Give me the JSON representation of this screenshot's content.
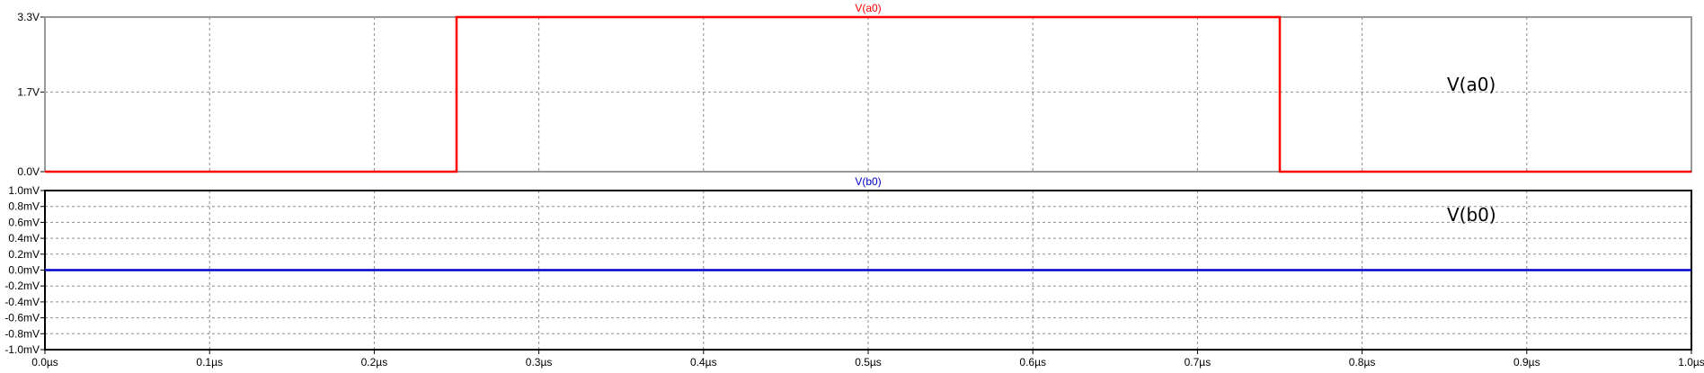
{
  "chart_data": [
    {
      "type": "line",
      "title": "V(a0)",
      "annotation": "V(a0)",
      "color": "#ff0000",
      "series": [
        {
          "name": "V(a0)",
          "x": [
            0.0,
            0.25,
            0.25,
            0.75,
            0.75,
            1.0
          ],
          "y": [
            0.0,
            0.0,
            3.3,
            3.3,
            0.0,
            0.0
          ]
        }
      ],
      "xlim": [
        0.0,
        1.0
      ],
      "ylim": [
        0.0,
        3.3
      ],
      "yticks": [
        "3.3V",
        "1.7V",
        "0.0V"
      ],
      "ytick_values": [
        3.3,
        1.7,
        0.0
      ],
      "grid": true
    },
    {
      "type": "line",
      "title": "V(b0)",
      "annotation": "V(b0)",
      "color": "#0000cc",
      "series": [
        {
          "name": "V(b0)",
          "x": [
            0.0,
            1.0
          ],
          "y": [
            0.0,
            0.0
          ]
        }
      ],
      "xlim": [
        0.0,
        1.0
      ],
      "ylim": [
        -1.0,
        1.0
      ],
      "yticks": [
        "1.0mV",
        "0.8mV",
        "0.6mV",
        "0.4mV",
        "0.2mV",
        "0.0mV",
        "-0.2mV",
        "-0.4mV",
        "-0.6mV",
        "-0.8mV",
        "-1.0mV"
      ],
      "ytick_values": [
        1.0,
        0.8,
        0.6,
        0.4,
        0.2,
        0.0,
        -0.2,
        -0.4,
        -0.6,
        -0.8,
        -1.0
      ],
      "xticks": [
        "0.0µs",
        "0.1µs",
        "0.2µs",
        "0.3µs",
        "0.4µs",
        "0.5µs",
        "0.6µs",
        "0.7µs",
        "0.8µs",
        "0.9µs",
        "1.0µs"
      ],
      "xtick_values": [
        0.0,
        0.1,
        0.2,
        0.3,
        0.4,
        0.5,
        0.6,
        0.7,
        0.8,
        0.9,
        1.0
      ],
      "grid": true
    }
  ]
}
